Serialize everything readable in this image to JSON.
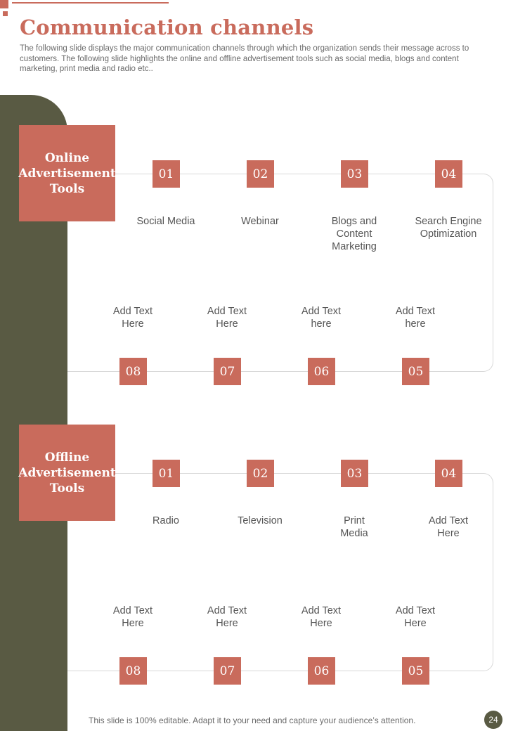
{
  "title": "Communication channels",
  "subtitle": "The following slide displays the major communication channels through which the organization sends their message across to customers. The following slide highlights the online and offline advertisement tools such as social media, blogs and content marketing, print media and radio etc..",
  "sections": [
    {
      "label": "Online Advertisement Tools",
      "top_items": [
        {
          "num": "01",
          "text": "Social Media"
        },
        {
          "num": "02",
          "text": "Webinar"
        },
        {
          "num": "03",
          "text": "Blogs and Content Marketing"
        },
        {
          "num": "04",
          "text": "Search Engine Optimization"
        }
      ],
      "bottom_items": [
        {
          "num": "08",
          "text": "Add Text Here"
        },
        {
          "num": "07",
          "text": "Add Text Here"
        },
        {
          "num": "06",
          "text": "Add Text here"
        },
        {
          "num": "05",
          "text": "Add Text here"
        }
      ]
    },
    {
      "label": "Offline Advertisement Tools",
      "top_items": [
        {
          "num": "01",
          "text": "Radio"
        },
        {
          "num": "02",
          "text": "Television"
        },
        {
          "num": "03",
          "text": "Print Media"
        },
        {
          "num": "04",
          "text": "Add Text Here"
        }
      ],
      "bottom_items": [
        {
          "num": "08",
          "text": "Add Text Here"
        },
        {
          "num": "07",
          "text": "Add Text Here"
        },
        {
          "num": "06",
          "text": "Add Text Here"
        },
        {
          "num": "05",
          "text": "Add Text Here"
        }
      ]
    }
  ],
  "footer": "This slide is 100% editable. Adapt it to your need and capture your audience’s attention.",
  "page_number": "24",
  "colors": {
    "accent": "#c96b5c",
    "sidebar": "#595a43"
  }
}
